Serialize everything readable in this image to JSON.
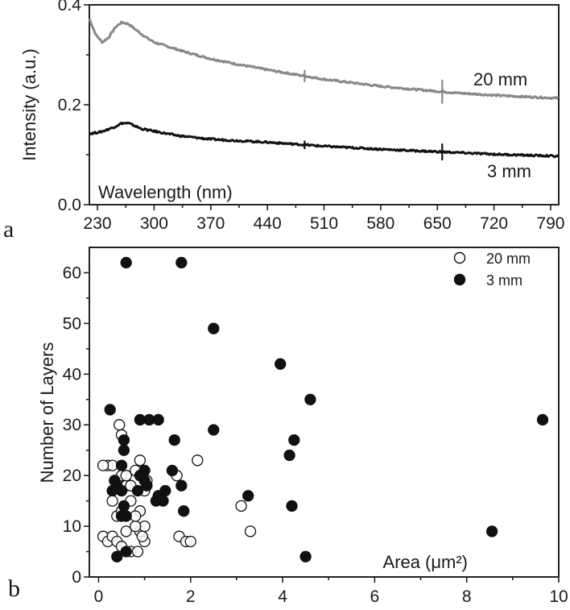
{
  "chart_data": [
    {
      "type": "line",
      "panel_label": "a",
      "xlabel": "Wavelength (nm)",
      "ylabel": "Intensity (a.u.)",
      "xlim": [
        220,
        800
      ],
      "ylim": [
        0.0,
        0.4
      ],
      "x_ticks": [
        230,
        300,
        370,
        440,
        510,
        580,
        650,
        720,
        790
      ],
      "y_ticks": [
        0.0,
        0.2,
        0.4
      ],
      "y_tick_labels": [
        "0.0",
        "0.2",
        "0.4"
      ],
      "series": [
        {
          "name": "20 mm",
          "color": "#888888",
          "x": [
            220,
            228,
            236,
            244,
            252,
            260,
            268,
            276,
            284,
            292,
            300,
            320,
            340,
            370,
            400,
            440,
            480,
            510,
            550,
            580,
            620,
            650,
            680,
            720,
            760,
            800
          ],
          "y": [
            0.372,
            0.34,
            0.325,
            0.335,
            0.355,
            0.365,
            0.362,
            0.352,
            0.342,
            0.333,
            0.325,
            0.315,
            0.305,
            0.292,
            0.282,
            0.27,
            0.259,
            0.251,
            0.243,
            0.237,
            0.231,
            0.227,
            0.223,
            0.219,
            0.216,
            0.213
          ]
        },
        {
          "name": "3 mm",
          "color": "#111111",
          "x": [
            220,
            235,
            250,
            260,
            268,
            276,
            284,
            300,
            330,
            370,
            440,
            510,
            580,
            650,
            720,
            800
          ],
          "y": [
            0.142,
            0.146,
            0.155,
            0.163,
            0.163,
            0.158,
            0.152,
            0.147,
            0.138,
            0.131,
            0.125,
            0.117,
            0.111,
            0.106,
            0.101,
            0.097
          ]
        }
      ]
    },
    {
      "type": "scatter",
      "panel_label": "b",
      "xlabel": "Area",
      "xlabel_unit": "(μm²)",
      "ylabel": "Number of Layers",
      "xlim": [
        -0.2,
        10
      ],
      "ylim": [
        0,
        65
      ],
      "x_ticks": [
        0,
        2,
        4,
        6,
        8,
        10
      ],
      "y_ticks": [
        0,
        10,
        20,
        30,
        40,
        50,
        60
      ],
      "legend_position": "top-right",
      "series": [
        {
          "name": "20 mm",
          "marker": "open-circle",
          "points": [
            [
              0.1,
              8
            ],
            [
              0.2,
              7
            ],
            [
              0.3,
              8
            ],
            [
              0.4,
              7
            ],
            [
              0.5,
              6
            ],
            [
              0.6,
              9
            ],
            [
              0.7,
              5
            ],
            [
              0.85,
              5
            ],
            [
              1.0,
              7
            ],
            [
              0.9,
              9
            ],
            [
              1.0,
              10
            ],
            [
              0.8,
              10
            ],
            [
              0.9,
              13
            ],
            [
              0.7,
              15
            ],
            [
              0.5,
              17
            ],
            [
              0.6,
              18
            ],
            [
              0.4,
              19
            ],
            [
              0.5,
              20
            ],
            [
              0.6,
              20
            ],
            [
              0.8,
              21
            ],
            [
              0.9,
              23
            ],
            [
              0.2,
              22
            ],
            [
              0.3,
              22
            ],
            [
              0.1,
              22
            ],
            [
              0.4,
              12
            ],
            [
              0.5,
              13
            ],
            [
              0.3,
              15
            ],
            [
              0.7,
              18
            ],
            [
              0.8,
              12
            ],
            [
              1.0,
              17
            ],
            [
              0.45,
              30
            ],
            [
              0.5,
              28
            ],
            [
              1.7,
              20
            ],
            [
              1.75,
              8
            ],
            [
              1.9,
              7
            ],
            [
              2.0,
              7
            ],
            [
              2.15,
              23
            ],
            [
              3.1,
              14
            ],
            [
              3.3,
              9
            ],
            [
              0.95,
              8
            ],
            [
              1.05,
              19
            ],
            [
              0.35,
              19
            ]
          ]
        },
        {
          "name": "3 mm",
          "marker": "filled-circle",
          "points": [
            [
              0.25,
              33
            ],
            [
              0.6,
              62
            ],
            [
              1.8,
              62
            ],
            [
              2.5,
              49
            ],
            [
              3.95,
              42
            ],
            [
              4.6,
              35
            ],
            [
              9.65,
              31
            ],
            [
              4.25,
              27
            ],
            [
              2.5,
              29
            ],
            [
              0.9,
              31
            ],
            [
              1.1,
              31
            ],
            [
              1.3,
              31
            ],
            [
              1.65,
              27
            ],
            [
              0.55,
              27
            ],
            [
              0.55,
              25
            ],
            [
              0.5,
              22
            ],
            [
              0.35,
              19
            ],
            [
              0.4,
              18
            ],
            [
              0.3,
              17
            ],
            [
              0.5,
              17
            ],
            [
              0.55,
              14
            ],
            [
              0.6,
              12
            ],
            [
              0.5,
              12
            ],
            [
              0.9,
              20
            ],
            [
              1.0,
              21
            ],
            [
              1.0,
              19
            ],
            [
              1.05,
              18
            ],
            [
              1.3,
              16
            ],
            [
              1.4,
              15
            ],
            [
              1.45,
              17
            ],
            [
              1.6,
              21
            ],
            [
              1.8,
              18
            ],
            [
              1.85,
              13
            ],
            [
              3.25,
              16
            ],
            [
              4.15,
              24
            ],
            [
              4.2,
              14
            ],
            [
              4.5,
              4
            ],
            [
              8.55,
              9
            ],
            [
              0.4,
              4
            ],
            [
              0.6,
              5
            ],
            [
              0.85,
              17
            ],
            [
              1.25,
              15
            ]
          ]
        }
      ]
    }
  ]
}
